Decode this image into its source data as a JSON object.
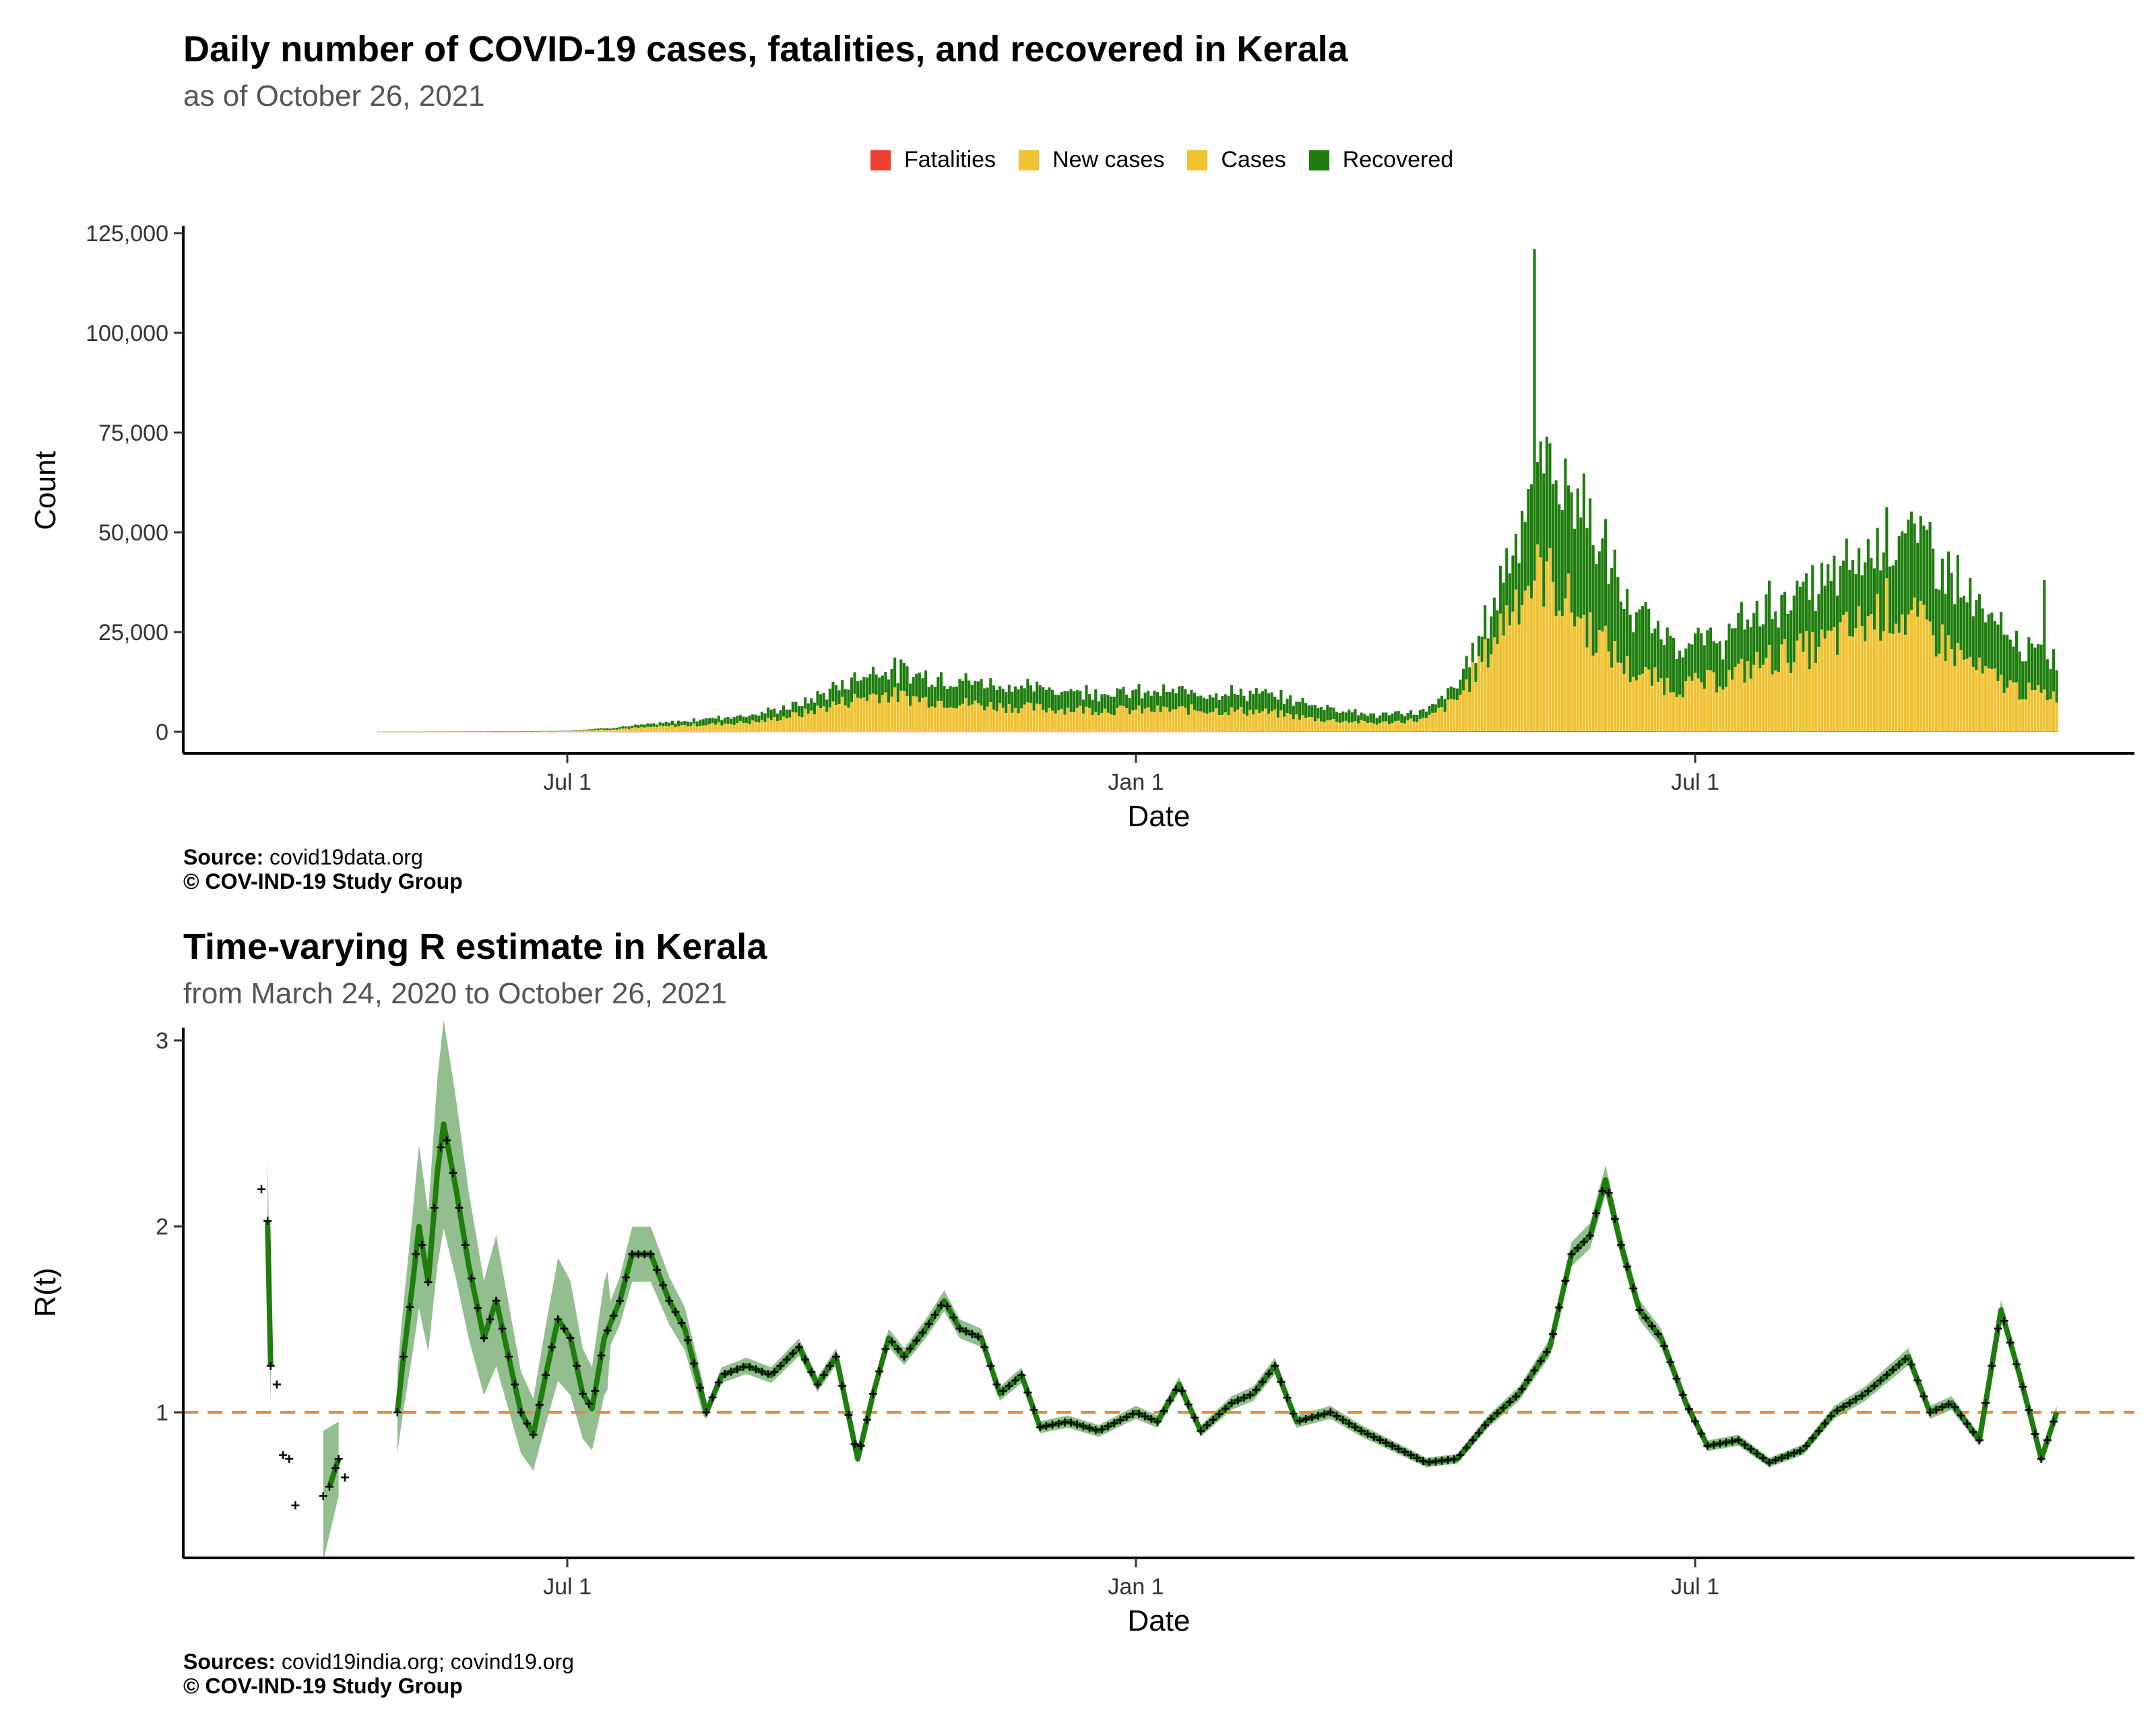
{
  "top_chart": {
    "title": "Daily number of COVID-19 cases, fatalities, and recovered in Kerala",
    "subtitle": "as of October 26, 2021",
    "legend": [
      {
        "label": "Fatalities",
        "color": "#e8412f"
      },
      {
        "label": "New cases",
        "color": "#f1c232"
      },
      {
        "label": "Cases",
        "color": "#f1c232"
      },
      {
        "label": "Recovered",
        "color": "#1f7d0e"
      }
    ],
    "xlabel": "Date",
    "ylabel": "Count",
    "x_ticks": [
      "Jul 1",
      "Jan 1",
      "Jul 1"
    ],
    "y_ticks": [
      "0",
      "25,000",
      "50,000",
      "75,000",
      "100,000",
      "125,000"
    ],
    "caption_source_label": "Source:",
    "caption_source": "covid19data.org",
    "caption_copyright": "© COV-IND-19 Study Group"
  },
  "bottom_chart": {
    "title": "Time-varying R estimate in Kerala",
    "subtitle": "from March 24, 2020 to October 26, 2021",
    "xlabel": "Date",
    "ylabel": "R(t)",
    "x_ticks": [
      "Jul 1",
      "Jan 1",
      "Jul 1"
    ],
    "y_ticks": [
      "1",
      "2",
      "3"
    ],
    "caption_source_label": "Sources:",
    "caption_source": "covid19india.org; covind19.org",
    "caption_copyright": "© COV-IND-19 Study Group"
  },
  "colors": {
    "fatalities": "#e8412f",
    "cases": "#f1c232",
    "recovered": "#1f7d0e",
    "r_line": "#1f7d0e",
    "r_band": "#6fa86a",
    "reference_line": "#e98b3a"
  },
  "chart_data": [
    {
      "type": "bar",
      "stacked": true,
      "title": "Daily number of COVID-19 cases, fatalities, and recovered in Kerala",
      "subtitle": "as of October 26, 2021",
      "xlabel": "Date",
      "ylabel": "Count",
      "x_range": [
        "2020-03-01",
        "2021-10-26"
      ],
      "ylim": [
        0,
        125000
      ],
      "grid": false,
      "legend_position": "top",
      "x_ticks": [
        {
          "date": "2020-07-01",
          "label": "Jul 1"
        },
        {
          "date": "2021-01-01",
          "label": "Jan 1"
        },
        {
          "date": "2021-07-01",
          "label": "Jul 1"
        }
      ],
      "series_keypoints": {
        "cases": [
          [
            "2020-03-01",
            0
          ],
          [
            "2020-05-15",
            30
          ],
          [
            "2020-06-15",
            80
          ],
          [
            "2020-07-01",
            150
          ],
          [
            "2020-07-15",
            600
          ],
          [
            "2020-08-01",
            1300
          ],
          [
            "2020-08-15",
            1800
          ],
          [
            "2020-09-01",
            2500
          ],
          [
            "2020-09-15",
            4500
          ],
          [
            "2020-10-01",
            8000
          ],
          [
            "2020-10-10",
            9500
          ],
          [
            "2020-10-25",
            8000
          ],
          [
            "2020-11-15",
            6500
          ],
          [
            "2020-12-01",
            5800
          ],
          [
            "2020-12-20",
            5500
          ],
          [
            "2021-01-01",
            5300
          ],
          [
            "2021-01-20",
            5500
          ],
          [
            "2021-02-10",
            5000
          ],
          [
            "2021-03-01",
            3000
          ],
          [
            "2021-03-20",
            2000
          ],
          [
            "2021-04-05",
            3000
          ],
          [
            "2021-04-15",
            8000
          ],
          [
            "2021-04-25",
            20000
          ],
          [
            "2021-05-05",
            35000
          ],
          [
            "2021-05-13",
            40000
          ],
          [
            "2021-05-25",
            28000
          ],
          [
            "2021-06-10",
            15000
          ],
          [
            "2021-06-25",
            11000
          ],
          [
            "2021-07-10",
            13000
          ],
          [
            "2021-07-25",
            18000
          ],
          [
            "2021-08-10",
            21000
          ],
          [
            "2021-08-25",
            27000
          ],
          [
            "2021-09-01",
            31000
          ],
          [
            "2021-09-15",
            25000
          ],
          [
            "2021-10-01",
            15000
          ],
          [
            "2021-10-15",
            10000
          ],
          [
            "2021-10-26",
            9000
          ]
        ],
        "recovered": [
          [
            "2020-03-01",
            0
          ],
          [
            "2020-05-15",
            10
          ],
          [
            "2020-06-15",
            40
          ],
          [
            "2020-07-01",
            100
          ],
          [
            "2020-07-15",
            400
          ],
          [
            "2020-08-01",
            800
          ],
          [
            "2020-08-15",
            1500
          ],
          [
            "2020-09-01",
            2000
          ],
          [
            "2020-09-15",
            2500
          ],
          [
            "2020-10-01",
            5000
          ],
          [
            "2020-10-10",
            6500
          ],
          [
            "2020-10-25",
            6000
          ],
          [
            "2020-11-15",
            5500
          ],
          [
            "2020-12-01",
            5000
          ],
          [
            "2020-12-20",
            4500
          ],
          [
            "2021-01-01",
            4500
          ],
          [
            "2021-01-20",
            4500
          ],
          [
            "2021-02-10",
            4500
          ],
          [
            "2021-03-01",
            3500
          ],
          [
            "2021-03-20",
            2000
          ],
          [
            "2021-04-05",
            2000
          ],
          [
            "2021-04-15",
            3500
          ],
          [
            "2021-04-25",
            8000
          ],
          [
            "2021-05-05",
            18000
          ],
          [
            "2021-05-13",
            28000
          ],
          [
            "2021-05-25",
            30000
          ],
          [
            "2021-06-10",
            15000
          ],
          [
            "2021-06-25",
            11000
          ],
          [
            "2021-07-10",
            10000
          ],
          [
            "2021-07-25",
            14000
          ],
          [
            "2021-08-10",
            15000
          ],
          [
            "2021-08-25",
            17000
          ],
          [
            "2021-09-01",
            20000
          ],
          [
            "2021-09-15",
            22000
          ],
          [
            "2021-10-01",
            15000
          ],
          [
            "2021-10-15",
            11000
          ],
          [
            "2021-10-26",
            9000
          ]
        ],
        "fatalities": [
          [
            "2020-03-01",
            0
          ],
          [
            "2020-10-01",
            25
          ],
          [
            "2021-01-01",
            20
          ],
          [
            "2021-05-20",
            200
          ],
          [
            "2021-07-01",
            130
          ],
          [
            "2021-09-01",
            160
          ],
          [
            "2021-10-26",
            100
          ]
        ]
      },
      "notable_values": [
        {
          "date": "2021-05-10",
          "series": "total",
          "value": 121000
        },
        {
          "date": "2021-10-22",
          "series": "total",
          "value": 38000
        }
      ]
    },
    {
      "type": "line",
      "title": "Time-varying R estimate in Kerala",
      "subtitle": "from March 24, 2020 to October 26, 2021",
      "xlabel": "Date",
      "ylabel": "R(t)",
      "x_range": [
        "2020-03-01",
        "2021-10-26"
      ],
      "ylim": [
        0.25,
        3.05
      ],
      "grid": false,
      "reference_line": {
        "y": 1,
        "style": "dashed"
      },
      "x_ticks": [
        {
          "date": "2020-07-01",
          "label": "Jul 1"
        },
        {
          "date": "2021-01-01",
          "label": "Jan 1"
        },
        {
          "date": "2021-07-01",
          "label": "Jul 1"
        }
      ],
      "early_points": [
        [
          "2020-03-24",
          2.2
        ],
        [
          "2020-03-26",
          2.03
        ],
        [
          "2020-03-27",
          1.25
        ],
        [
          "2020-03-29",
          1.15
        ],
        [
          "2020-03-31",
          0.77
        ],
        [
          "2020-04-02",
          0.75
        ],
        [
          "2020-04-04",
          0.5
        ],
        [
          "2020-04-13",
          0.55
        ],
        [
          "2020-04-15",
          0.6
        ],
        [
          "2020-04-17",
          0.7
        ],
        [
          "2020-04-18",
          0.75
        ],
        [
          "2020-04-20",
          0.65
        ]
      ],
      "series": [
        {
          "values": [
            [
              "2020-05-07",
              1.0
            ],
            [
              "2020-05-09",
              1.3
            ],
            [
              "2020-05-12",
              1.7
            ],
            [
              "2020-05-14",
              2.0
            ],
            [
              "2020-05-17",
              1.7
            ],
            [
              "2020-05-20",
              2.3
            ],
            [
              "2020-05-22",
              2.55
            ],
            [
              "2020-05-26",
              2.2
            ],
            [
              "2020-05-30",
              1.8
            ],
            [
              "2020-06-04",
              1.4
            ],
            [
              "2020-06-08",
              1.6
            ],
            [
              "2020-06-12",
              1.3
            ],
            [
              "2020-06-16",
              1.0
            ],
            [
              "2020-06-20",
              0.88
            ],
            [
              "2020-06-24",
              1.2
            ],
            [
              "2020-06-28",
              1.5
            ],
            [
              "2020-07-02",
              1.4
            ],
            [
              "2020-07-06",
              1.1
            ],
            [
              "2020-07-09",
              1.02
            ],
            [
              "2020-07-13",
              1.4
            ],
            [
              "2020-07-18",
              1.6
            ],
            [
              "2020-07-22",
              1.85
            ],
            [
              "2020-07-28",
              1.85
            ],
            [
              "2020-08-03",
              1.6
            ],
            [
              "2020-08-08",
              1.45
            ],
            [
              "2020-08-12",
              1.2
            ],
            [
              "2020-08-15",
              1.0
            ],
            [
              "2020-08-20",
              1.2
            ],
            [
              "2020-08-28",
              1.25
            ],
            [
              "2020-09-05",
              1.2
            ],
            [
              "2020-09-14",
              1.35
            ],
            [
              "2020-09-20",
              1.15
            ],
            [
              "2020-09-26",
              1.3
            ],
            [
              "2020-10-03",
              0.75
            ],
            [
              "2020-10-08",
              1.1
            ],
            [
              "2020-10-13",
              1.4
            ],
            [
              "2020-10-18",
              1.3
            ],
            [
              "2020-10-25",
              1.45
            ],
            [
              "2020-10-31",
              1.6
            ],
            [
              "2020-11-05",
              1.45
            ],
            [
              "2020-11-12",
              1.4
            ],
            [
              "2020-11-18",
              1.1
            ],
            [
              "2020-11-25",
              1.2
            ],
            [
              "2020-12-01",
              0.92
            ],
            [
              "2020-12-10",
              0.95
            ],
            [
              "2020-12-20",
              0.9
            ],
            [
              "2021-01-01",
              1.0
            ],
            [
              "2021-01-08",
              0.95
            ],
            [
              "2021-01-15",
              1.15
            ],
            [
              "2021-01-22",
              0.9
            ],
            [
              "2021-02-01",
              1.05
            ],
            [
              "2021-02-08",
              1.1
            ],
            [
              "2021-02-15",
              1.25
            ],
            [
              "2021-02-22",
              0.95
            ],
            [
              "2021-03-05",
              1.0
            ],
            [
              "2021-03-15",
              0.9
            ],
            [
              "2021-03-25",
              0.82
            ],
            [
              "2021-04-05",
              0.73
            ],
            [
              "2021-04-15",
              0.75
            ],
            [
              "2021-04-25",
              0.95
            ],
            [
              "2021-05-05",
              1.1
            ],
            [
              "2021-05-15",
              1.35
            ],
            [
              "2021-05-22",
              1.85
            ],
            [
              "2021-05-28",
              1.95
            ],
            [
              "2021-06-02",
              2.25
            ],
            [
              "2021-06-07",
              1.9
            ],
            [
              "2021-06-13",
              1.55
            ],
            [
              "2021-06-20",
              1.4
            ],
            [
              "2021-06-28",
              1.05
            ],
            [
              "2021-07-05",
              0.82
            ],
            [
              "2021-07-15",
              0.85
            ],
            [
              "2021-07-25",
              0.73
            ],
            [
              "2021-08-05",
              0.8
            ],
            [
              "2021-08-15",
              1.0
            ],
            [
              "2021-08-25",
              1.1
            ],
            [
              "2021-09-01",
              1.2
            ],
            [
              "2021-09-08",
              1.3
            ],
            [
              "2021-09-15",
              1.0
            ],
            [
              "2021-09-22",
              1.05
            ],
            [
              "2021-10-01",
              0.85
            ],
            [
              "2021-10-08",
              1.55
            ],
            [
              "2021-10-14",
              1.2
            ],
            [
              "2021-10-18",
              0.95
            ],
            [
              "2021-10-21",
              0.75
            ],
            [
              "2021-10-24",
              0.9
            ],
            [
              "2021-10-26",
              1.0
            ]
          ]
        }
      ]
    }
  ]
}
